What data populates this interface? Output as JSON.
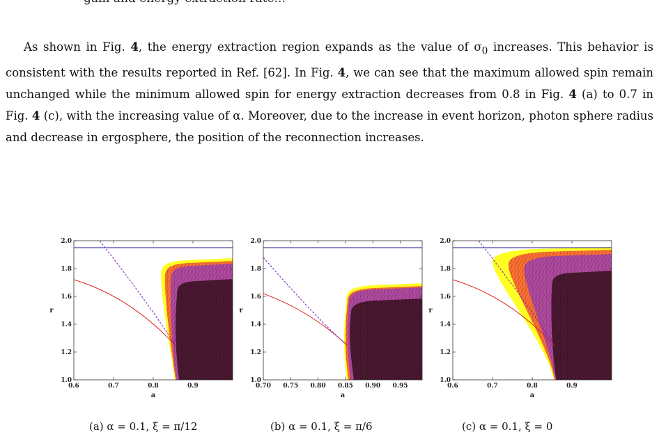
{
  "top_line": "gain and energy extraction rate...",
  "paragraph": {
    "s1": "As shown in Fig. ",
    "fig": "4",
    "s2": ", the energy extraction region expands as the value of σ",
    "sub0": "0",
    "s3": " increases. This behavior is consistent with the results reported in Ref. [62]. In Fig. ",
    "s4": ", we can see that the maximum allowed spin remain unchanged while the minimum allowed spin for energy extraction decreases from 0.8 in Fig. ",
    "s5": " (a) to 0.7 in Fig. ",
    "s6": " (c), with the increasing value of α. Moreover, due to the increase in event horizon, photon sphere radius and decrease in ergosphere, the position of the reconnection increases."
  },
  "colors": {
    "horizon_line": "#1a1a8c",
    "photon_curve": "#e0201a",
    "dashed_curve": "#7a1fc0",
    "yellow_region": "#ffff22",
    "orange_region": "#ff7033",
    "magenta_region": "#b04aa0",
    "dark_region": "#4a1830"
  },
  "chart_data": [
    {
      "type": "area",
      "caption": "(a) α = 0.1,  ξ = π/12",
      "xlabel": "a",
      "ylabel": "r",
      "xlim": [
        0.6,
        1.0
      ],
      "ylim": [
        1.0,
        2.0
      ],
      "xticks": [
        0.6,
        0.7,
        0.8,
        0.9
      ],
      "xtick_labels": [
        "0.6",
        "0.7",
        "0.8",
        "0.9"
      ],
      "yticks": [
        1.0,
        1.2,
        1.4,
        1.6,
        1.8,
        2.0
      ],
      "ytick_labels": [
        "1.0",
        "1.2",
        "1.4",
        "1.6",
        "1.8",
        "2.0"
      ],
      "horizon_r": 1.95,
      "cusp": [
        0.855,
        1.25
      ],
      "photon_start": [
        0.6,
        1.72
      ],
      "dashed_start": [
        0.665,
        2.0
      ],
      "regions": [
        {
          "a_min": 0.82,
          "r_top": 1.86
        },
        {
          "a_min": 0.83,
          "r_top": 1.84
        },
        {
          "a_min": 0.845,
          "r_top": 1.82
        },
        {
          "a_min": 0.86,
          "r_top": 1.71
        }
      ]
    },
    {
      "type": "area",
      "caption": "(b) α = 0.1,  ξ = π/6",
      "xlabel": "a",
      "ylabel": "r",
      "xlim": [
        0.7,
        0.99
      ],
      "ylim": [
        1.0,
        2.0
      ],
      "xticks": [
        0.7,
        0.75,
        0.8,
        0.85,
        0.9,
        0.95
      ],
      "xtick_labels": [
        "0.70",
        "0.75",
        "0.80",
        "0.85",
        "0.90",
        "0.95"
      ],
      "yticks": [
        1.0,
        1.2,
        1.4,
        1.6,
        1.8,
        2.0
      ],
      "ytick_labels": [
        "1.0",
        "1.2",
        "1.4",
        "1.6",
        "1.8",
        "2.0"
      ],
      "horizon_r": 1.95,
      "cusp": [
        0.853,
        1.25
      ],
      "photon_start": [
        0.7,
        1.62
      ],
      "dashed_start": [
        0.7,
        1.88
      ],
      "regions": [
        {
          "a_min": 0.852,
          "r_top": 1.68
        },
        {
          "a_min": 0.854,
          "r_top": 1.66
        },
        {
          "a_min": 0.856,
          "r_top": 1.65
        },
        {
          "a_min": 0.86,
          "r_top": 1.57
        }
      ]
    },
    {
      "type": "area",
      "caption": "(c) α = 0.1,  ξ = 0",
      "xlabel": "a",
      "ylabel": "r",
      "xlim": [
        0.6,
        1.0
      ],
      "ylim": [
        1.0,
        2.0
      ],
      "xticks": [
        0.6,
        0.7,
        0.8,
        0.9
      ],
      "xtick_labels": [
        "0.6",
        "0.7",
        "0.8",
        "0.9"
      ],
      "yticks": [
        1.0,
        1.2,
        1.4,
        1.6,
        1.8,
        2.0
      ],
      "ytick_labels": [
        "1.0",
        "1.2",
        "1.4",
        "1.6",
        "1.8",
        "2.0"
      ],
      "horizon_r": 1.95,
      "cusp": [
        0.855,
        1.25
      ],
      "photon_start": [
        0.6,
        1.72
      ],
      "dashed_start": [
        0.665,
        2.0
      ],
      "regions": [
        {
          "a_min": 0.7,
          "r_top": 1.94
        },
        {
          "a_min": 0.74,
          "r_top": 1.92
        },
        {
          "a_min": 0.78,
          "r_top": 1.89
        },
        {
          "a_min": 0.85,
          "r_top": 1.77
        }
      ]
    }
  ]
}
